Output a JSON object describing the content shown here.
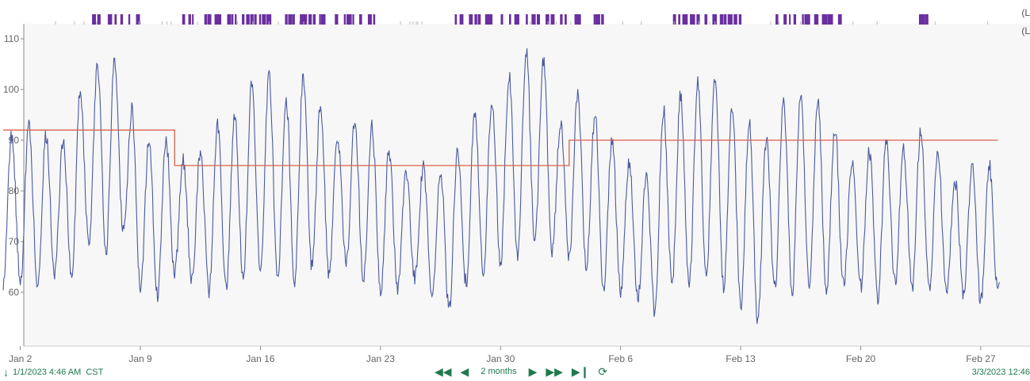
{
  "chart_data": {
    "type": "line",
    "title": "",
    "xlabel": "",
    "ylabel": "",
    "xlim": [
      "2023-01-01",
      "2023-02-28"
    ],
    "ylim": [
      50,
      112
    ],
    "y_ticks": [
      60,
      70,
      80,
      90,
      100,
      110
    ],
    "x_ticks": [
      {
        "date": "2023-01-02",
        "label": "Jan 2"
      },
      {
        "date": "2023-01-09",
        "label": "Jan 9"
      },
      {
        "date": "2023-01-16",
        "label": "Jan 16"
      },
      {
        "date": "2023-01-23",
        "label": "Jan 23"
      },
      {
        "date": "2023-01-30",
        "label": "Jan 30"
      },
      {
        "date": "2023-02-06",
        "label": "Feb 6"
      },
      {
        "date": "2023-02-13",
        "label": "Feb 13"
      },
      {
        "date": "2023-02-20",
        "label": "Feb 20"
      },
      {
        "date": "2023-02-27",
        "label": "Feb 27"
      }
    ],
    "grid": false,
    "series": [
      {
        "color": "#4a5aa0",
        "x": [
          "2023-01-01",
          "2023-01-02",
          "2023-01-03",
          "2023-01-04",
          "2023-01-05",
          "2023-01-06",
          "2023-01-07",
          "2023-01-08",
          "2023-01-09",
          "2023-01-10",
          "2023-01-11",
          "2023-01-12",
          "2023-01-13",
          "2023-01-14",
          "2023-01-15",
          "2023-01-16",
          "2023-01-17",
          "2023-01-18",
          "2023-01-19",
          "2023-01-20",
          "2023-01-21",
          "2023-01-22",
          "2023-01-23",
          "2023-01-24",
          "2023-01-25",
          "2023-01-26",
          "2023-01-27",
          "2023-01-28",
          "2023-01-29",
          "2023-01-30",
          "2023-01-31",
          "2023-02-01",
          "2023-02-02",
          "2023-02-03",
          "2023-02-04",
          "2023-02-05",
          "2023-02-06",
          "2023-02-07",
          "2023-02-08",
          "2023-02-09",
          "2023-02-10",
          "2023-02-11",
          "2023-02-12",
          "2023-02-13",
          "2023-02-14",
          "2023-02-15",
          "2023-02-16",
          "2023-02-17",
          "2023-02-18",
          "2023-02-19",
          "2023-02-20",
          "2023-02-21",
          "2023-02-22",
          "2023-02-23",
          "2023-02-24",
          "2023-02-25",
          "2023-02-26",
          "2023-02-27",
          "2023-02-28"
        ],
        "max": [
          91,
          93,
          91,
          90,
          100,
          105,
          106,
          96,
          90,
          90,
          86,
          88,
          93,
          95,
          101,
          103,
          98,
          103,
          97,
          90,
          94,
          93,
          88,
          84,
          85,
          84,
          88,
          95,
          98,
          103,
          108,
          106,
          93,
          99,
          95,
          90,
          86,
          83,
          96,
          99,
          101,
          103,
          96,
          94,
          90,
          98,
          99,
          98,
          92,
          86,
          88,
          90,
          88,
          92,
          88,
          82,
          85,
          85,
          72
        ],
        "min": [
          62,
          61,
          64,
          62,
          70,
          68,
          72,
          60,
          59,
          64,
          62,
          60,
          61,
          63,
          64,
          63,
          62,
          65,
          63,
          66,
          62,
          60,
          61,
          63,
          59,
          56,
          62,
          64,
          66,
          67,
          70,
          68,
          67,
          65,
          60,
          60,
          59,
          56,
          62,
          61,
          63,
          61,
          57,
          54,
          61,
          60,
          62,
          60,
          61,
          61,
          59,
          62,
          61,
          60,
          60,
          59,
          58,
          60,
          64
        ]
      },
      {
        "color": "#d9614a",
        "x": [
          "2023-01-01",
          "2023-01-11",
          "2023-01-11",
          "2023-02-03",
          "2023-02-03",
          "2023-02-28"
        ],
        "values": [
          92,
          92,
          85,
          85,
          90,
          90
        ]
      }
    ],
    "event_markers": {
      "color": "#6a2fa0",
      "days": [
        "2023-01-06",
        "2023-01-07",
        "2023-01-08",
        "2023-01-11",
        "2023-01-12",
        "2023-01-13",
        "2023-01-14",
        "2023-01-15",
        "2023-01-16",
        "2023-01-17",
        "2023-01-18",
        "2023-01-19",
        "2023-01-20",
        "2023-01-21",
        "2023-01-22",
        "2023-01-27",
        "2023-01-28",
        "2023-01-29",
        "2023-01-30",
        "2023-01-31",
        "2023-02-01",
        "2023-02-02",
        "2023-02-03",
        "2023-02-04",
        "2023-02-09",
        "2023-02-10",
        "2023-02-11",
        "2023-02-12",
        "2023-02-15",
        "2023-02-16",
        "2023-02-17",
        "2023-02-18",
        "2023-02-23"
      ]
    }
  },
  "edge_labels": [
    "(L",
    "(L"
  ],
  "footer": {
    "start_time": "1/1/2023 4:46 AM  CST",
    "range_label": "2 months",
    "end_time": "3/3/2023 12:46",
    "colors": {
      "accent": "#1f7a4d"
    }
  }
}
